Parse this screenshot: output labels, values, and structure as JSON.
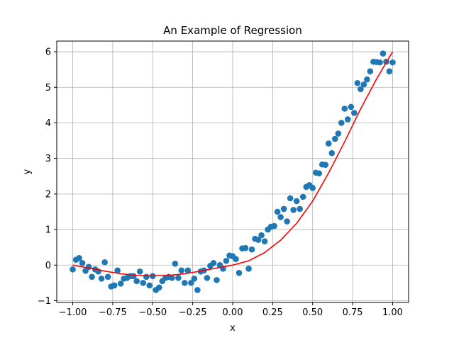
{
  "chart_data": {
    "type": "scatter",
    "title": "An Example of Regression",
    "xlabel": "x",
    "ylabel": "y",
    "xlim": [
      -1.1,
      1.1
    ],
    "ylim": [
      -1.05,
      6.3
    ],
    "grid": true,
    "legend": "none",
    "x_ticks": [
      -1.0,
      -0.75,
      -0.5,
      -0.25,
      0.0,
      0.25,
      0.5,
      0.75,
      1.0
    ],
    "x_tick_labels": [
      "−1.00",
      "−0.75",
      "−0.50",
      "−0.25",
      "0.00",
      "0.25",
      "0.50",
      "0.75",
      "1.00"
    ],
    "y_ticks": [
      -1,
      0,
      1,
      2,
      3,
      4,
      5,
      6
    ],
    "y_tick_labels": [
      "−1",
      "0",
      "1",
      "2",
      "3",
      "4",
      "5",
      "6"
    ],
    "colors": {
      "points": "#1f77b4",
      "fit_line": "#ff0000",
      "grid": "#b0b0b0"
    },
    "series": [
      {
        "type": "scatter",
        "x": [
          -1.0,
          -0.98,
          -0.96,
          -0.94,
          -0.92,
          -0.9,
          -0.88,
          -0.86,
          -0.84,
          -0.82,
          -0.8,
          -0.78,
          -0.76,
          -0.74,
          -0.72,
          -0.7,
          -0.68,
          -0.66,
          -0.64,
          -0.62,
          -0.6,
          -0.58,
          -0.56,
          -0.54,
          -0.52,
          -0.5,
          -0.48,
          -0.46,
          -0.44,
          -0.42,
          -0.4,
          -0.38,
          -0.36,
          -0.34,
          -0.32,
          -0.3,
          -0.28,
          -0.26,
          -0.24,
          -0.22,
          -0.2,
          -0.18,
          -0.16,
          -0.14,
          -0.12,
          -0.1,
          -0.08,
          -0.06,
          -0.04,
          -0.02,
          0.0,
          0.02,
          0.04,
          0.06,
          0.08,
          0.1,
          0.12,
          0.14,
          0.16,
          0.18,
          0.2,
          0.22,
          0.24,
          0.26,
          0.28,
          0.3,
          0.32,
          0.34,
          0.36,
          0.38,
          0.4,
          0.42,
          0.44,
          0.46,
          0.48,
          0.5,
          0.52,
          0.54,
          0.56,
          0.58,
          0.6,
          0.62,
          0.64,
          0.66,
          0.68,
          0.7,
          0.72,
          0.74,
          0.76,
          0.78,
          0.8,
          0.82,
          0.84,
          0.86,
          0.88,
          0.9,
          0.92,
          0.94,
          0.96,
          0.98,
          1.0
        ],
        "y": [
          -0.12,
          0.15,
          0.2,
          0.06,
          -0.16,
          -0.05,
          -0.33,
          -0.12,
          -0.18,
          -0.38,
          0.08,
          -0.33,
          -0.6,
          -0.57,
          -0.15,
          -0.52,
          -0.38,
          -0.36,
          -0.31,
          -0.31,
          -0.45,
          -0.18,
          -0.5,
          -0.33,
          -0.57,
          -0.31,
          -0.7,
          -0.63,
          -0.45,
          -0.36,
          -0.33,
          -0.36,
          0.04,
          -0.36,
          -0.15,
          -0.5,
          -0.15,
          -0.5,
          -0.38,
          -0.7,
          -0.18,
          -0.15,
          -0.36,
          -0.02,
          0.06,
          -0.42,
          0.0,
          -0.1,
          0.12,
          0.27,
          0.25,
          0.17,
          -0.22,
          0.47,
          0.48,
          -0.1,
          0.44,
          0.74,
          0.71,
          0.84,
          0.67,
          1.0,
          1.08,
          1.1,
          1.5,
          1.35,
          1.58,
          1.23,
          1.88,
          1.55,
          1.8,
          1.58,
          1.92,
          2.2,
          2.25,
          2.17,
          2.6,
          2.58,
          2.83,
          2.82,
          3.42,
          3.15,
          3.55,
          3.7,
          4.0,
          4.4,
          4.1,
          4.45,
          4.28,
          5.12,
          4.95,
          5.08,
          5.22,
          5.45,
          5.72,
          5.71,
          5.7,
          5.95,
          5.72,
          5.45,
          5.7
        ],
        "x_actual": [
          -1.0,
          -0.98,
          -0.96,
          -0.94,
          -0.92,
          -0.9,
          -0.88,
          -0.86,
          -0.84,
          -0.82,
          -0.8,
          -0.78,
          -0.76,
          -0.74,
          -0.72,
          -0.7,
          -0.68,
          -0.66,
          -0.64,
          -0.62,
          -0.6,
          -0.58,
          -0.56,
          -0.54,
          -0.52,
          -0.5,
          -0.48,
          -0.46,
          -0.44,
          -0.42,
          -0.4,
          -0.38,
          -0.36,
          -0.34,
          -0.32,
          -0.3,
          -0.28,
          -0.26,
          -0.24,
          -0.22,
          -0.2,
          -0.18,
          -0.16,
          -0.14,
          -0.12,
          -0.1,
          -0.08,
          -0.06,
          -0.04,
          -0.02,
          0.0,
          0.02,
          0.04,
          0.06,
          0.08,
          0.1,
          0.12,
          0.14,
          0.16,
          0.18,
          0.2,
          0.22,
          0.24,
          0.26,
          0.28,
          0.3,
          0.32,
          0.34,
          0.36,
          0.38,
          0.4,
          0.42,
          0.44,
          0.46,
          0.48,
          0.5,
          0.52,
          0.54,
          0.56,
          0.58,
          0.6,
          0.62,
          0.64,
          0.66,
          0.68,
          0.7,
          0.72,
          0.74,
          0.76,
          0.78,
          0.8,
          0.82,
          0.84,
          0.86,
          0.88,
          0.9,
          0.92,
          0.94,
          0.96,
          0.98,
          1.0
        ]
      },
      {
        "type": "line",
        "x": [
          -1.0,
          -0.9,
          -0.8,
          -0.7,
          -0.6,
          -0.5,
          -0.4,
          -0.3,
          -0.2,
          -0.1,
          0.0,
          0.1,
          0.2,
          0.3,
          0.4,
          0.5,
          0.6,
          0.7,
          0.8,
          0.9,
          1.0
        ],
        "y": [
          0.0,
          -0.081,
          -0.168,
          -0.243,
          -0.288,
          -0.3,
          -0.288,
          -0.243,
          -0.168,
          -0.081,
          0.0,
          0.12,
          0.352,
          0.702,
          1.176,
          1.8,
          2.592,
          3.468,
          4.392,
          5.238,
          6.0
        ]
      }
    ]
  }
}
